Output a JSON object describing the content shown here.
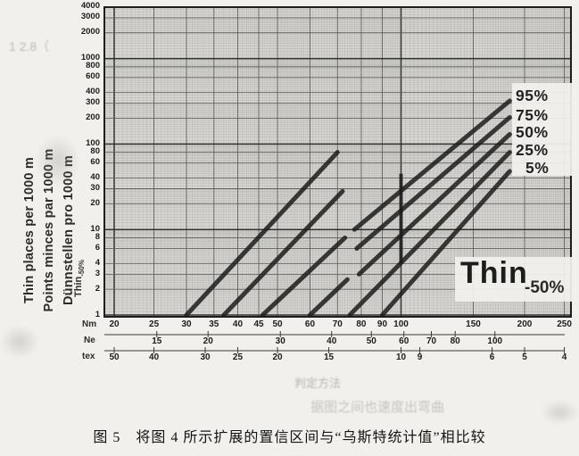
{
  "caption": "图 5　将图 4 所示扩展的置信区间与“乌斯特统计值”相比较",
  "left_axis": {
    "line1": "Thin places per 1000 m",
    "line2": "Points minces par 1000 m",
    "line3": "Dünnstellen pro 1000 m",
    "thin_label": "Thin",
    "thin_label_sub": "-50%"
  },
  "annotation": {
    "thin": "Thin",
    "thin_sub": "-50%"
  },
  "axis_headers": {
    "nm": "Nm",
    "ne": "Ne",
    "tex": "tex"
  },
  "bleedthrough": {
    "top_left": "1 2.8（",
    "line1": "判定方法",
    "line2": "据图之间也速度出弯曲"
  },
  "colors": {
    "page_bg": "#f1f0ec",
    "grid_bg": "#d7d6d2",
    "grid_minor": "#a3a29e",
    "grid_medium": "#595955",
    "grid_major": "#2a2a2a",
    "curve": "#1c1c1c",
    "label_patch": "#f2f1ed"
  },
  "chart_data": {
    "type": "line",
    "title": "",
    "x_axis": {
      "label": "Nm",
      "scale": "log",
      "min": 20,
      "max": 250,
      "ticks": [
        20,
        25,
        30,
        35,
        40,
        45,
        50,
        60,
        70,
        80,
        90,
        100,
        150,
        200,
        250
      ]
    },
    "x_axis_ne": {
      "label": "Ne",
      "ticks": [
        15,
        20,
        30,
        40,
        50,
        60,
        70,
        80,
        100
      ],
      "nm_per_ne": 1.6934
    },
    "x_axis_tex": {
      "label": "tex",
      "ticks": [
        50,
        40,
        30,
        25,
        20,
        15,
        10,
        9,
        6,
        5,
        4
      ],
      "nm_from_tex": "1000/tex"
    },
    "y_axis": {
      "label": "Thin places per 1000 m (Thin -50%)",
      "scale": "log",
      "min": 1,
      "max": 4000,
      "ticks": [
        4000,
        3000,
        2000,
        1000,
        800,
        600,
        400,
        300,
        200,
        100,
        80,
        60,
        40,
        30,
        20,
        10,
        8,
        6,
        4,
        3,
        2,
        1
      ]
    },
    "grid": "log-log dense",
    "legend_position": "right-inside",
    "series": [
      {
        "name": "confidence-line-1",
        "label": "",
        "points": [
          [
            30,
            1
          ],
          [
            70,
            80
          ]
        ]
      },
      {
        "name": "confidence-line-2",
        "label": "",
        "points": [
          [
            37,
            1
          ],
          [
            72,
            28
          ]
        ]
      },
      {
        "name": "confidence-line-3",
        "label": "",
        "points": [
          [
            46,
            1
          ],
          [
            73,
            8
          ]
        ]
      },
      {
        "name": "confidence-line-4",
        "label": "",
        "points": [
          [
            60,
            1
          ],
          [
            74,
            2.6
          ]
        ]
      },
      {
        "name": "uster-95",
        "label": "95%",
        "points": [
          [
            77,
            10
          ],
          [
            184,
            320
          ]
        ]
      },
      {
        "name": "uster-75",
        "label": "75%",
        "points": [
          [
            78,
            6
          ],
          [
            184,
            205
          ]
        ]
      },
      {
        "name": "uster-50",
        "label": "50%",
        "points": [
          [
            79,
            3
          ],
          [
            184,
            130
          ]
        ]
      },
      {
        "name": "uster-25",
        "label": "25%",
        "points": [
          [
            75,
            1
          ],
          [
            184,
            80
          ]
        ]
      },
      {
        "name": "uster-5",
        "label": "5%",
        "points": [
          [
            90,
            1
          ],
          [
            184,
            48
          ]
        ]
      }
    ],
    "marker": {
      "name": "confidence-interval-at-nm100",
      "x": 100,
      "y1": 4,
      "y2": 45
    }
  }
}
